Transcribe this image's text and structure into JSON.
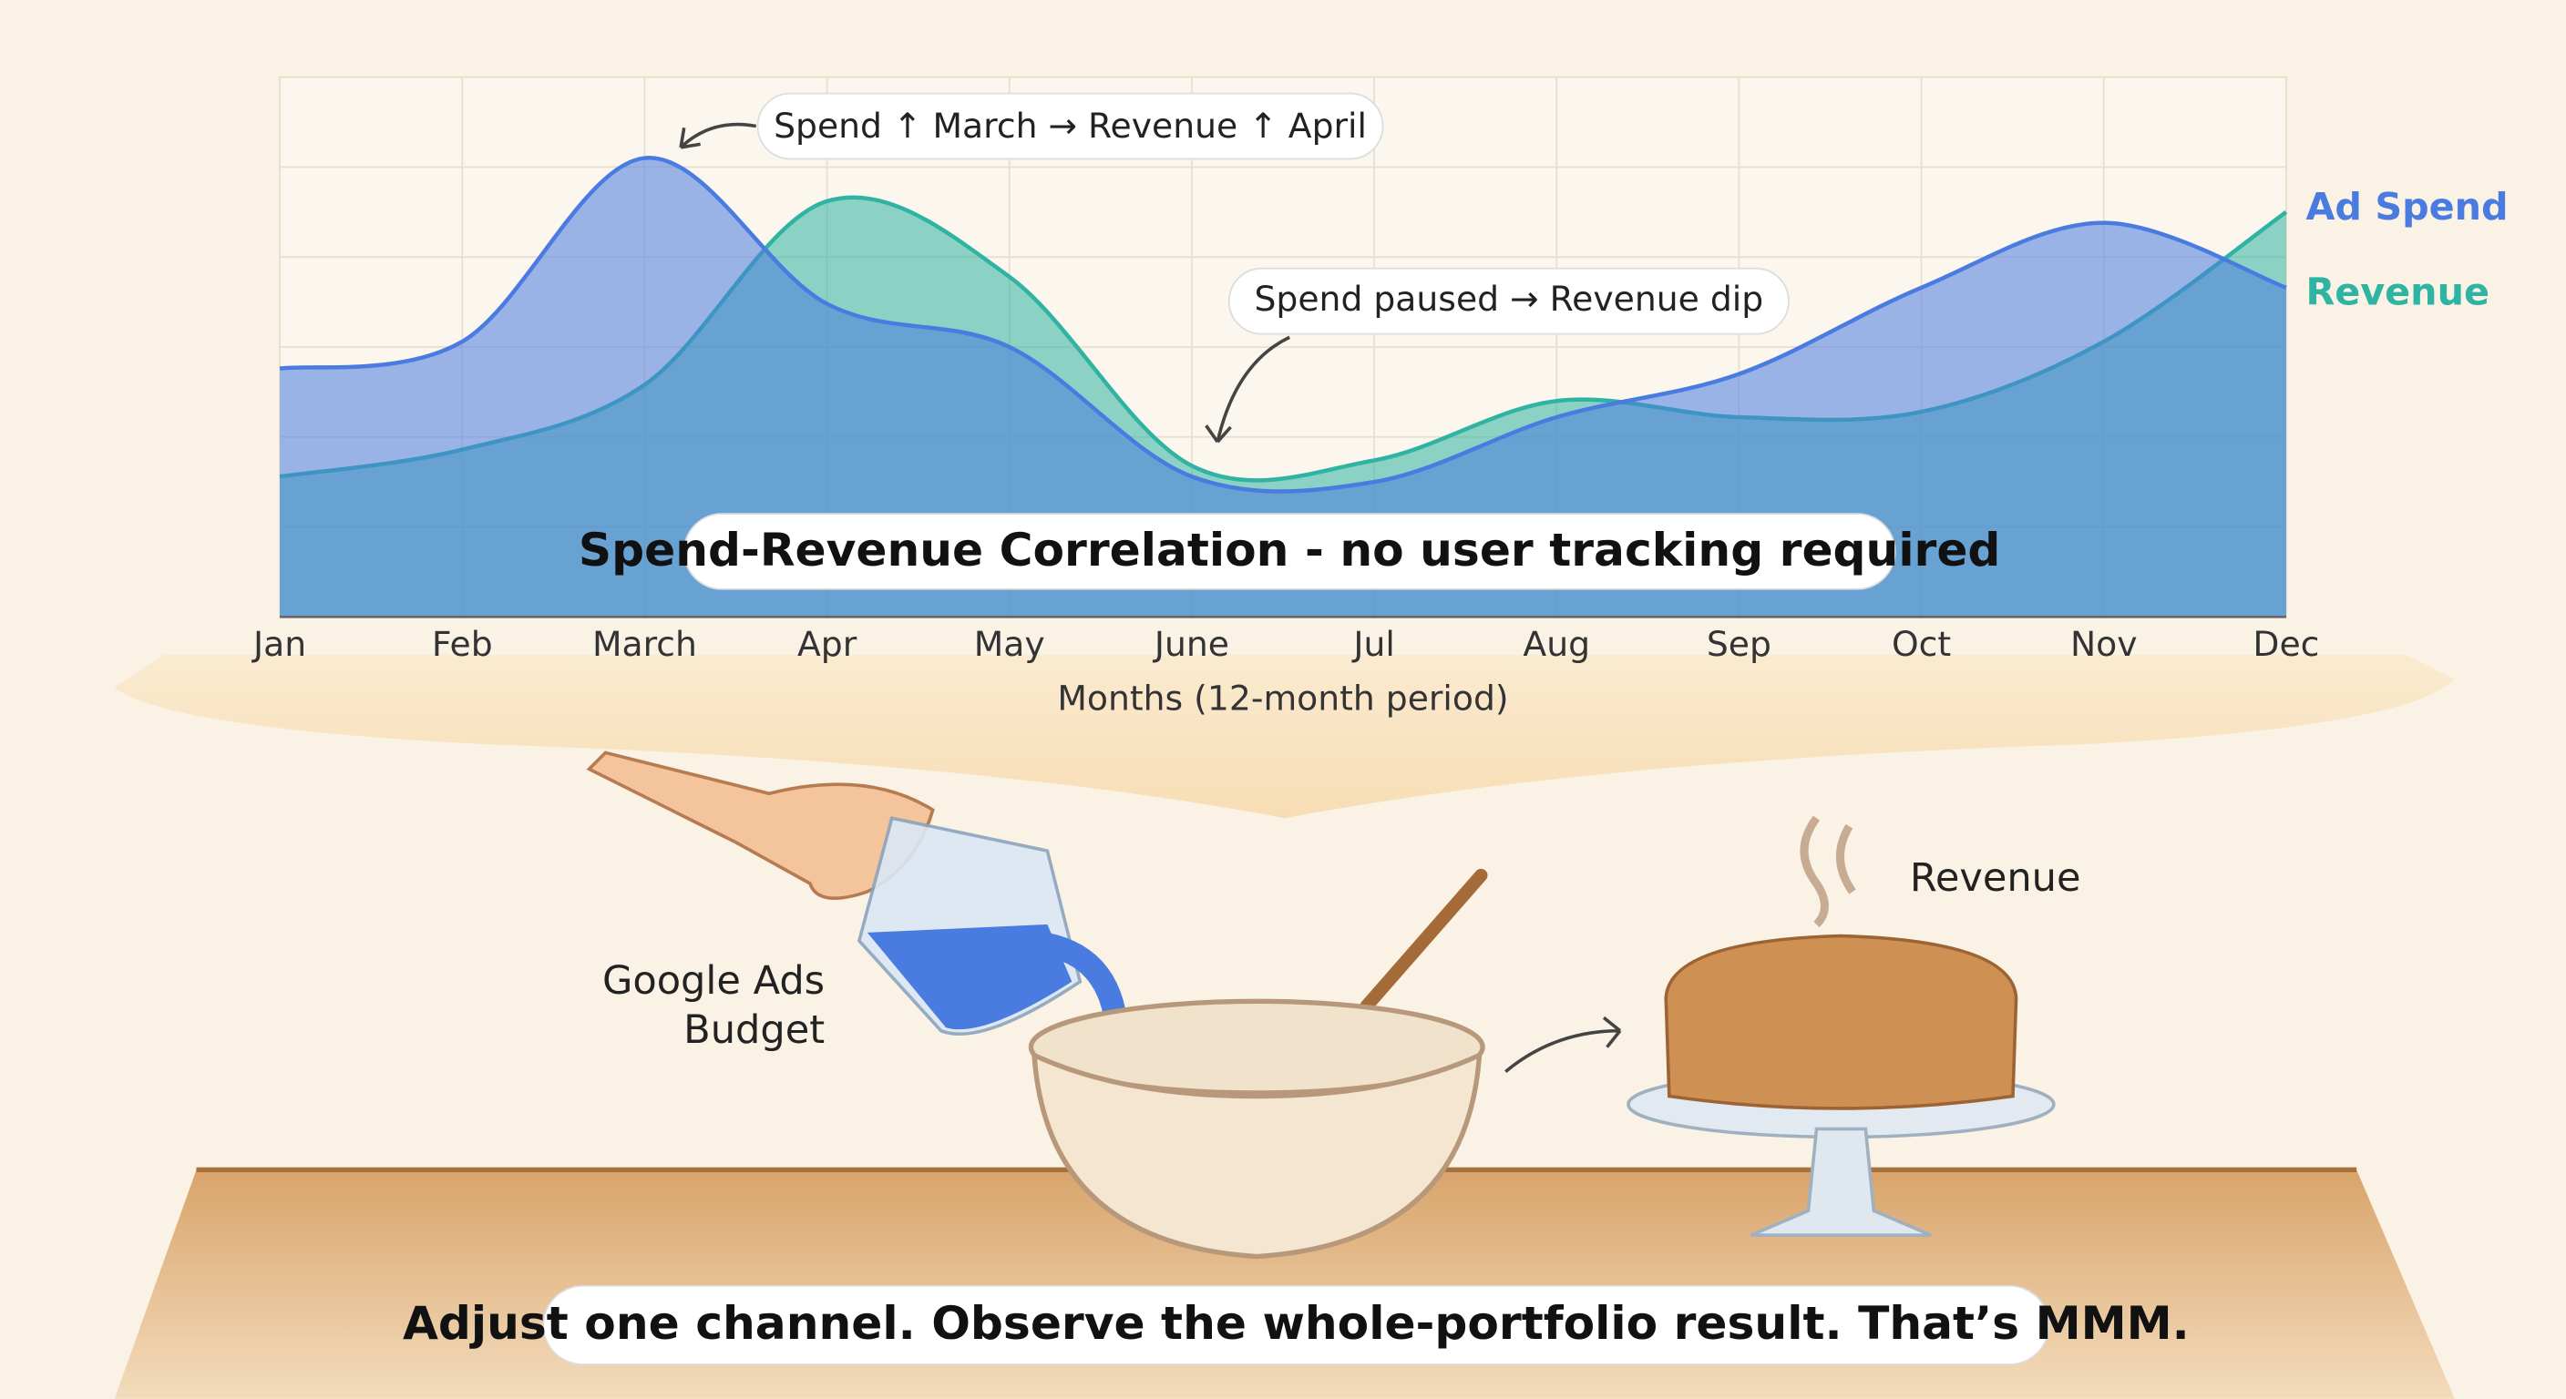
{
  "chart_data": {
    "type": "area",
    "categories": [
      "Jan",
      "Feb",
      "March",
      "Apr",
      "May",
      "June",
      "Jul",
      "Aug",
      "Sep",
      "Oct",
      "Nov",
      "Dec"
    ],
    "series": [
      {
        "name": "Ad Spend",
        "color": "#4a7be0",
        "values": [
          46,
          51,
          85,
          58,
          50,
          26,
          25,
          37,
          45,
          61,
          73,
          61
        ]
      },
      {
        "name": "Revenue",
        "color": "#2fb3a3",
        "values": [
          26,
          31,
          43,
          77,
          63,
          28,
          29,
          40,
          37,
          38,
          51,
          75
        ]
      }
    ],
    "ylim": [
      0,
      100
    ],
    "x_label": "Months (12-month period)",
    "annotations": [
      "Spend ↑ March → Revenue ↑ April",
      "Spend paused → Revenue dip"
    ],
    "caption": "Spend-Revenue Correlation - no user tracking required",
    "grid": true
  },
  "illustration": {
    "budget_label": [
      "Google Ads",
      "Budget"
    ],
    "result_label": "Revenue",
    "footer": "Adjust one channel. Observe the whole-portfolio result. That’s MMM."
  }
}
